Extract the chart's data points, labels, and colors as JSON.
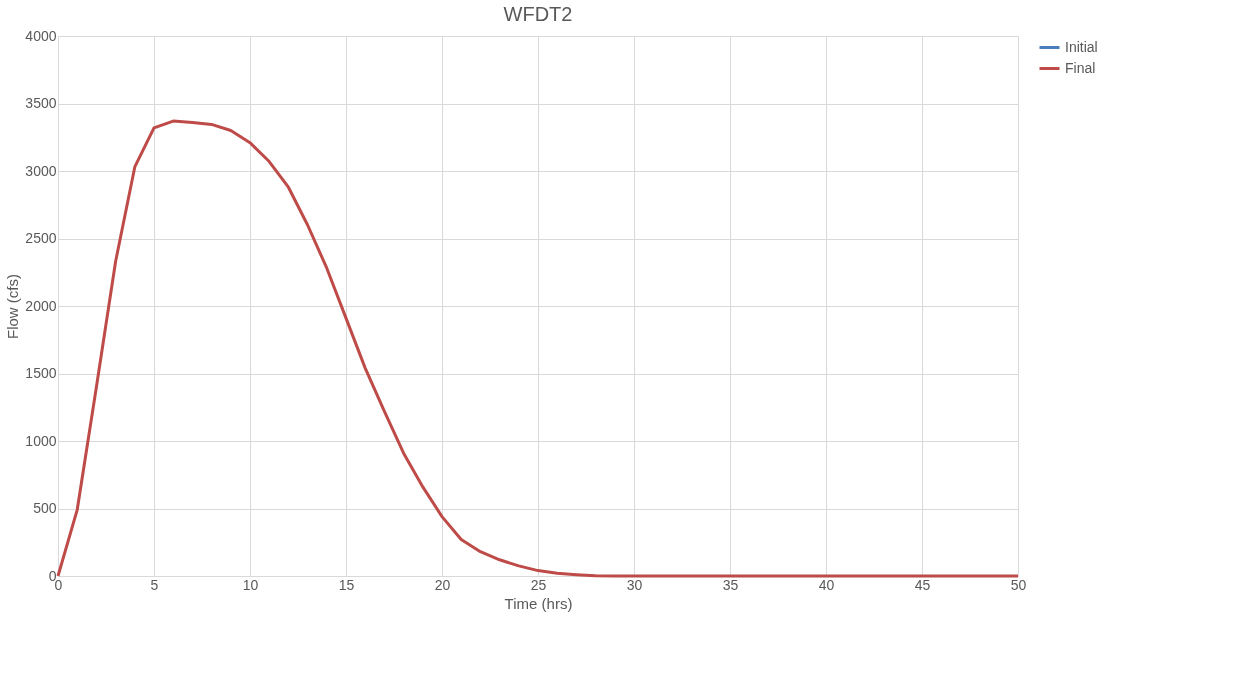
{
  "chart_data": {
    "type": "line",
    "title": "WFDT2",
    "xlabel": "Time (hrs)",
    "ylabel": "Flow (cfs)",
    "x": [
      0,
      1,
      2,
      3,
      4,
      5,
      6,
      7,
      8,
      9,
      10,
      11,
      12,
      13,
      14,
      15,
      16,
      17,
      18,
      19,
      20,
      21,
      22,
      23,
      24,
      25,
      26,
      27,
      28,
      29,
      30,
      31,
      32,
      33,
      34,
      35,
      36,
      37,
      38,
      39,
      40,
      41,
      42,
      43,
      44,
      45,
      46,
      47,
      48,
      49,
      50
    ],
    "series": [
      {
        "name": "Initial",
        "color": "#4a7ebb",
        "values": [
          null,
          null,
          null,
          null,
          null,
          null,
          null,
          null,
          null,
          null,
          null,
          null,
          null,
          null,
          null,
          null,
          null,
          null,
          null,
          null,
          null,
          null,
          null,
          null,
          null,
          null,
          null,
          null,
          null,
          null,
          null,
          null,
          null,
          null,
          null,
          null,
          null,
          null,
          null,
          null,
          null,
          null,
          null,
          null,
          null,
          null,
          null,
          null,
          null,
          null,
          null
        ]
      },
      {
        "name": "Final",
        "color": "#be4b48",
        "values": [
          0,
          490,
          1400,
          2330,
          3030,
          3320,
          3370,
          3360,
          3345,
          3300,
          3210,
          3070,
          2880,
          2600,
          2280,
          1910,
          1540,
          1220,
          910,
          660,
          440,
          270,
          180,
          120,
          75,
          40,
          20,
          10,
          2,
          0,
          0,
          0,
          0,
          0,
          0,
          0,
          0,
          0,
          0,
          0,
          0,
          0,
          0,
          0,
          0,
          0,
          0,
          0,
          0,
          0,
          0
        ]
      }
    ],
    "xlim": [
      0,
      50
    ],
    "xticks": [
      0,
      5,
      10,
      15,
      20,
      25,
      30,
      35,
      40,
      45,
      50
    ],
    "ylim": [
      0,
      4000
    ],
    "yticks": [
      0,
      500,
      1000,
      1500,
      2000,
      2500,
      3000,
      3500,
      4000
    ],
    "grid": true,
    "legend": "right",
    "marker": "none",
    "line_style": "solid"
  }
}
